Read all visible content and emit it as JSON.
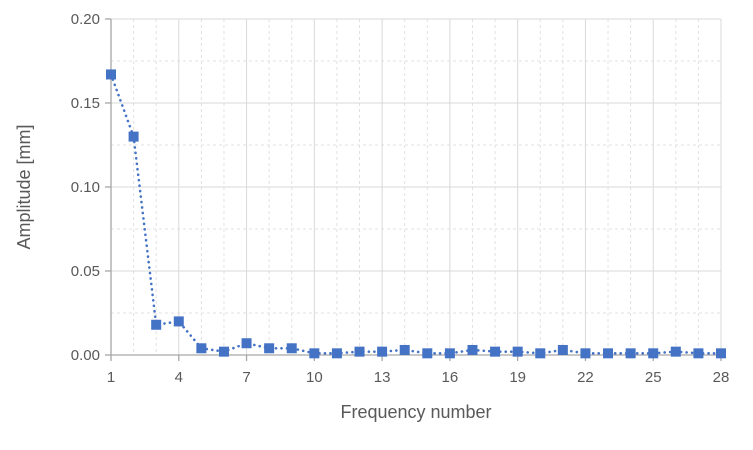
{
  "chart_data": {
    "type": "line",
    "title": "",
    "xlabel": "Frequency number",
    "ylabel": "Amplitude [mm]",
    "x": [
      1,
      2,
      3,
      4,
      5,
      6,
      7,
      8,
      9,
      10,
      11,
      12,
      13,
      14,
      15,
      16,
      17,
      18,
      19,
      20,
      21,
      22,
      23,
      24,
      25,
      26,
      27,
      28
    ],
    "series": [
      {
        "name": "Amplitude",
        "values": [
          0.167,
          0.13,
          0.018,
          0.02,
          0.004,
          0.002,
          0.007,
          0.004,
          0.004,
          0.001,
          0.001,
          0.002,
          0.002,
          0.003,
          0.001,
          0.001,
          0.003,
          0.002,
          0.002,
          0.001,
          0.003,
          0.001,
          0.001,
          0.001,
          0.001,
          0.002,
          0.001,
          0.001
        ]
      }
    ],
    "xlim": [
      1,
      28
    ],
    "ylim": [
      0,
      0.2
    ],
    "x_major_ticks": [
      1,
      4,
      7,
      10,
      13,
      16,
      19,
      22,
      25,
      28
    ],
    "x_minor_step": 1,
    "y_major_ticks": [
      0,
      0.05,
      0.1,
      0.15,
      0.2
    ],
    "y_tick_labels": [
      "0.00",
      "0.05",
      "0.10",
      "0.15",
      "0.20"
    ],
    "y_minor_step": 0.025,
    "grid": "major-solid, minor-dashed",
    "legend_position": "none",
    "marker": "square",
    "line_style": "dotted",
    "colors": {
      "series": "#4472C4",
      "axis_line": "#A6A6A6",
      "grid_major": "#D9D9D9",
      "grid_minor": "#E1E1E1",
      "text": "#595959",
      "background": "#FFFFFF"
    }
  }
}
